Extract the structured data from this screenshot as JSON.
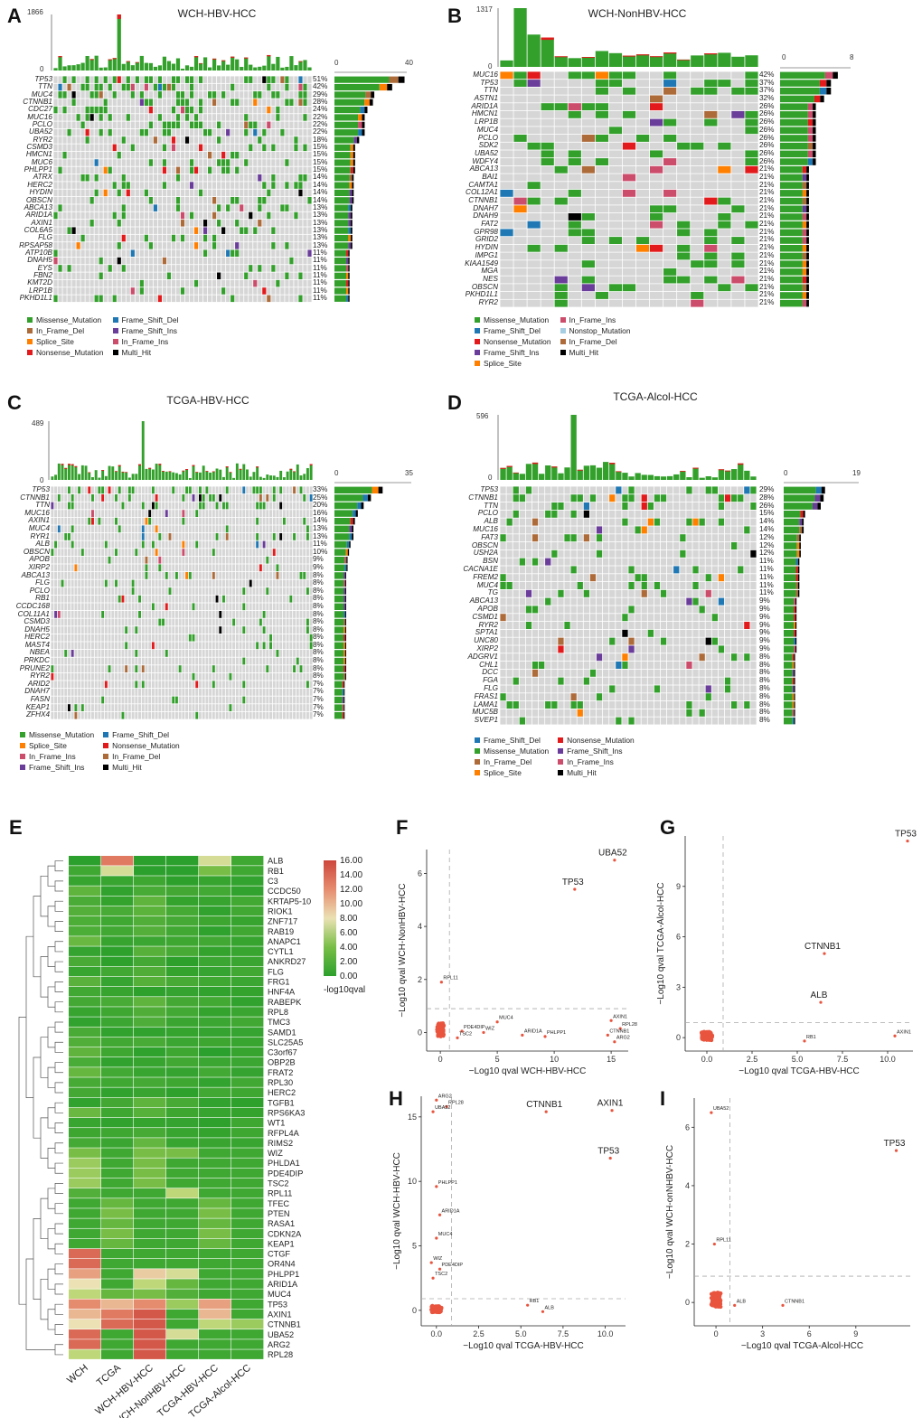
{
  "colors": {
    "Missense_Mutation": "#33a02c",
    "Frame_Shift_Del": "#1f78b4",
    "Nonsense_Mutation": "#e31a1c",
    "Frame_Shift_Ins": "#6a3d9a",
    "In_Frame_Del": "#ad6b3a",
    "In_Frame_Ins": "#cc4c6c",
    "Splice_Site": "#ff7f00",
    "Multi_Hit": "#000000",
    "Nonstop_Mutation": "#a6cee3",
    "grid": "#d6d6d6",
    "scatter": "#e8543e"
  },
  "oncoplots": [
    {
      "panel": "A",
      "title": "WCH-HBV-HCC",
      "top_max": "1866",
      "top_zero": "0",
      "bar_zero": "0",
      "bar_max": "40",
      "genes": [
        "TP53",
        "TTN",
        "MUC4",
        "CTNNB1",
        "CDC27",
        "MUC16",
        "PCLO",
        "UBA52",
        "RYR2",
        "CSMD3",
        "HMCN1",
        "MUC6",
        "PHLPP1",
        "ATRX",
        "HERC2",
        "HYDIN",
        "OBSCN",
        "ABCA13",
        "ARID1A",
        "AXIN1",
        "COL6A5",
        "FLG",
        "RPSAP58",
        "ATP10B",
        "DNAH5",
        "EYS",
        "FBN2",
        "KMT2D",
        "LRP1B",
        "PKHD1L1"
      ],
      "pcts": [
        "51%",
        "42%",
        "29%",
        "28%",
        "24%",
        "22%",
        "22%",
        "22%",
        "18%",
        "15%",
        "15%",
        "15%",
        "15%",
        "14%",
        "14%",
        "14%",
        "14%",
        "13%",
        "13%",
        "13%",
        "13%",
        "13%",
        "13%",
        "11%",
        "11%",
        "11%",
        "11%",
        "11%",
        "11%",
        "11%"
      ],
      "legend": [
        "Missense_Mutation",
        "Frame_Shift_Del",
        "In_Frame_Del",
        "Frame_Shift_Ins",
        "Splice_Site",
        "In_Frame_Ins",
        "Nonsense_Mutation",
        "Multi_Hit"
      ]
    },
    {
      "panel": "B",
      "title": "WCH-NonHBV-HCC",
      "top_max": "1317",
      "top_zero": "0",
      "bar_zero": "0",
      "bar_max": "8",
      "genes": [
        "MUC16",
        "TP53",
        "TTN",
        "ASTN1",
        "ARID1A",
        "HMCN1",
        "LRP1B",
        "MUC4",
        "PCLO",
        "SDK2",
        "UBA52",
        "WDFY4",
        "ABCA13",
        "BAI1",
        "CAMTA1",
        "COL12A1",
        "CTNNB1",
        "DNAH7",
        "DNAH9",
        "FAT2",
        "GPR98",
        "GRID2",
        "HYDIN",
        "IMPG1",
        "KIAA1549",
        "MGA",
        "NES",
        "OBSCN",
        "PKHD1L1",
        "RYR2"
      ],
      "pcts": [
        "42%",
        "37%",
        "37%",
        "32%",
        "26%",
        "26%",
        "26%",
        "26%",
        "26%",
        "26%",
        "26%",
        "26%",
        "21%",
        "21%",
        "21%",
        "21%",
        "21%",
        "21%",
        "21%",
        "21%",
        "21%",
        "21%",
        "21%",
        "21%",
        "21%",
        "21%",
        "21%",
        "21%",
        "21%",
        "21%"
      ],
      "legend": [
        "Missense_Mutation",
        "In_Frame_Ins",
        "Frame_Shift_Del",
        "Nonstop_Mutation",
        "Nonsense_Mutation",
        "In_Frame_Del",
        "Frame_Shift_Ins",
        "Multi_Hit",
        "Splice_Site"
      ]
    },
    {
      "panel": "C",
      "title": "TCGA-HBV-HCC",
      "top_max": "489",
      "top_zero": "0",
      "bar_zero": "0",
      "bar_max": "35",
      "genes": [
        "TP53",
        "CTNNB1",
        "TTN",
        "MUC16",
        "AXIN1",
        "MUC4",
        "RYR1",
        "ALB",
        "OBSCN",
        "APOB",
        "XIRP2",
        "ABCA13",
        "FLG",
        "PCLO",
        "RB1",
        "CCDC168",
        "COL11A1",
        "CSMD3",
        "DNAH5",
        "HERC2",
        "MAST4",
        "NBEA",
        "PRKDC",
        "PRUNE2",
        "RYR2",
        "ARID2",
        "DNAH7",
        "FASN",
        "KEAP1",
        "ZFHX4"
      ],
      "pcts": [
        "33%",
        "25%",
        "20%",
        "16%",
        "14%",
        "13%",
        "13%",
        "11%",
        "10%",
        "9%",
        "9%",
        "8%",
        "8%",
        "8%",
        "8%",
        "8%",
        "8%",
        "8%",
        "8%",
        "8%",
        "8%",
        "8%",
        "8%",
        "8%",
        "8%",
        "7%",
        "7%",
        "7%",
        "7%",
        "7%"
      ],
      "legend": [
        "Missense_Mutation",
        "Frame_Shift_Del",
        "Splice_Site",
        "Nonsense_Mutation",
        "In_Frame_Ins",
        "In_Frame_Del",
        "Frame_Shift_Ins",
        "Multi_Hit"
      ]
    },
    {
      "panel": "D",
      "title": "TCGA-Alcol-HCC",
      "top_max": "596",
      "top_zero": "0",
      "bar_zero": "0",
      "bar_max": "19",
      "genes": [
        "TP53",
        "CTNNB1",
        "TTN",
        "PCLO",
        "ALB",
        "MUC16",
        "FAT3",
        "OBSCN",
        "USH2A",
        "BSN",
        "CACNA1E",
        "FREM2",
        "MUC4",
        "TG",
        "ABCA13",
        "APOB",
        "CSMD1",
        "RYR2",
        "SPTA1",
        "UNC80",
        "XIRP2",
        "ADGRV1",
        "CHL1",
        "DCC",
        "FGA",
        "FLG",
        "FRAS1",
        "LAMA1",
        "MUC5B",
        "SVEP1"
      ],
      "pcts": [
        "29%",
        "28%",
        "26%",
        "15%",
        "14%",
        "14%",
        "12%",
        "12%",
        "12%",
        "11%",
        "11%",
        "11%",
        "11%",
        "11%",
        "9%",
        "9%",
        "9%",
        "9%",
        "9%",
        "9%",
        "9%",
        "8%",
        "8%",
        "8%",
        "8%",
        "8%",
        "8%",
        "8%",
        "8%",
        "8%"
      ],
      "legend": [
        "Frame_Shift_Del",
        "Nonsense_Mutation",
        "Missense_Mutation",
        "Frame_Shift_Ins",
        "In_Frame_Del",
        "In_Frame_Ins",
        "Splice_Site",
        "Multi_Hit"
      ]
    }
  ],
  "heatmap": {
    "panel": "E",
    "columns": [
      "WCH",
      "TCGA",
      "WCH-HBV-HCC",
      "WCH-NonHBV-HCC",
      "TCGA-HBV-HCC",
      "TCGA-Alcol-HCC"
    ],
    "rows": [
      "ALB",
      "RB1",
      "C3",
      "CCDC50",
      "KRTAP5-10",
      "RIOK1",
      "ZNF717",
      "RAB19",
      "ANAPC1",
      "CYTL1",
      "ANKRD27",
      "FLG",
      "FRG1",
      "HNF4A",
      "RABEPK",
      "RPL8",
      "TMC3",
      "SAMD1",
      "SLC25A5",
      "C3orf67",
      "OBP2B",
      "FRAT2",
      "RPL30",
      "HERC2",
      "TGFB1",
      "RPS6KA3",
      "WT1",
      "RFPL4A",
      "RIMS2",
      "WIZ",
      "PHLDA1",
      "PDE4DIP",
      "TSC2",
      "RPL11",
      "TFEC",
      "PTEN",
      "RASA1",
      "CDKN2A",
      "KEAP1",
      "CTGF",
      "OR4N4",
      "PHLPP1",
      "ARID1A",
      "MUC4",
      "TP53",
      "AXIN1",
      "CTNNB1",
      "UBA52",
      "ARG2",
      "RPL28"
    ],
    "legend_ticks": [
      "16.00",
      "14.00",
      "12.00",
      "10.00",
      "8.00",
      "6.00",
      "4.00",
      "2.00",
      "0.00"
    ],
    "legend_title": "-log10qval"
  },
  "scatters": [
    {
      "panel": "F",
      "xlabel": "−Log10 qval WCH-HBV-HCC",
      "ylabel": "−Log10 qval WCH-NonHBV-HCC",
      "xticks": [
        "0",
        "5",
        "10",
        "15"
      ],
      "yticks": [
        "0",
        "2",
        "4",
        "6"
      ],
      "labels": [
        {
          "t": "UBA52",
          "x": 15.3,
          "y": 6.5,
          "big": true
        },
        {
          "t": "TP53",
          "x": 11.8,
          "y": 5.4,
          "big": true
        },
        {
          "t": "RPL11",
          "x": 0.1,
          "y": 1.9
        },
        {
          "t": "MUC4",
          "x": 5.0,
          "y": 0.4
        },
        {
          "t": "PDE4DIP",
          "x": 1.9,
          "y": 0.05
        },
        {
          "t": "TSC2",
          "x": 1.5,
          "y": -0.2
        },
        {
          "t": "WIZ",
          "x": 3.8,
          "y": 0.0
        },
        {
          "t": "ARID1A",
          "x": 7.2,
          "y": -0.1
        },
        {
          "t": "PHLPP1",
          "x": 9.2,
          "y": -0.15
        },
        {
          "t": "AXIN1",
          "x": 15.0,
          "y": 0.45
        },
        {
          "t": "RPL28",
          "x": 15.8,
          "y": 0.15
        },
        {
          "t": "CTNNB1",
          "x": 14.7,
          "y": -0.1
        },
        {
          "t": "ARG2",
          "x": 15.3,
          "y": -0.35
        }
      ]
    },
    {
      "panel": "G",
      "xlabel": "−Log10 qval TCGA-HBV-HCC",
      "ylabel": "−Log10 qval TCGA-Alcol-HCC",
      "xticks": [
        "0.0",
        "2.5",
        "5.0",
        "7.5",
        "10.0"
      ],
      "yticks": [
        "0",
        "3",
        "6",
        "9"
      ],
      "labels": [
        {
          "t": "TP53",
          "x": 11.1,
          "y": 11.7,
          "big": true
        },
        {
          "t": "CTNNB1",
          "x": 6.5,
          "y": 5.0,
          "big": true
        },
        {
          "t": "ALB",
          "x": 6.3,
          "y": 2.1,
          "big": true
        },
        {
          "t": "RB1",
          "x": 5.4,
          "y": -0.2
        },
        {
          "t": "AXIN1",
          "x": 10.4,
          "y": 0.1
        }
      ]
    },
    {
      "panel": "H",
      "xlabel": "−Log10 qval TCGA-HBV-HCC",
      "ylabel": "−Log10 qval WCH-HBV-HCC",
      "xticks": [
        "0.0",
        "2.5",
        "5.0",
        "7.5",
        "10.0"
      ],
      "yticks": [
        "0",
        "5",
        "10",
        "15"
      ],
      "labels": [
        {
          "t": "CTNNB1",
          "x": 6.5,
          "y": 15.4,
          "big": true
        },
        {
          "t": "AXIN1",
          "x": 10.4,
          "y": 15.5,
          "big": true
        },
        {
          "t": "TP53",
          "x": 10.3,
          "y": 11.8,
          "big": true
        },
        {
          "t": "ARG2",
          "x": 0.0,
          "y": 16.3
        },
        {
          "t": "RPL28",
          "x": 0.6,
          "y": 15.8
        },
        {
          "t": "UBA52",
          "x": -0.2,
          "y": 15.4
        },
        {
          "t": "PHLPP1",
          "x": 0.0,
          "y": 9.6
        },
        {
          "t": "ARID1A",
          "x": 0.2,
          "y": 7.4
        },
        {
          "t": "MUC4",
          "x": 0.0,
          "y": 5.6
        },
        {
          "t": "WIZ",
          "x": -0.3,
          "y": 3.7
        },
        {
          "t": "PDE4DIP",
          "x": 0.2,
          "y": 3.2
        },
        {
          "t": "TSC2",
          "x": -0.2,
          "y": 2.5
        },
        {
          "t": "RB1",
          "x": 5.4,
          "y": 0.4
        },
        {
          "t": "ALB",
          "x": 6.3,
          "y": -0.1
        }
      ]
    },
    {
      "panel": "I",
      "xlabel": "−Log10 qval TCGA-Alcol-HCC",
      "ylabel": "−Log10 qval WCH-onNHBV-HCC",
      "xticks": [
        "0",
        "3",
        "6",
        "9"
      ],
      "yticks": [
        "0",
        "2",
        "4",
        "6"
      ],
      "labels": [
        {
          "t": "UBA52",
          "x": -0.3,
          "y": 6.5
        },
        {
          "t": "TP53",
          "x": 11.6,
          "y": 5.2,
          "big": true
        },
        {
          "t": "RPL11",
          "x": -0.1,
          "y": 2.0
        },
        {
          "t": "ALB",
          "x": 1.2,
          "y": -0.1
        },
        {
          "t": "CTNNB1",
          "x": 4.3,
          "y": -0.1
        }
      ]
    }
  ]
}
